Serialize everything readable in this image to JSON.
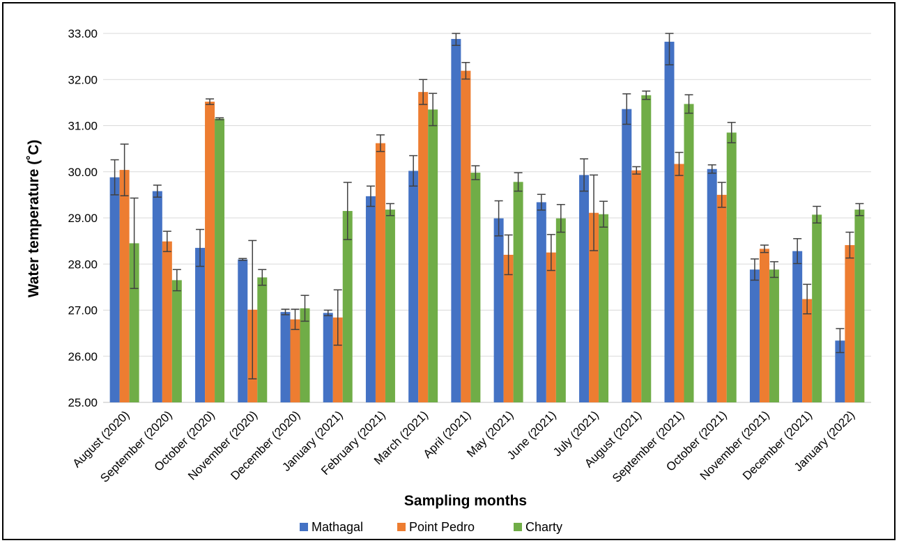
{
  "chart_data": {
    "type": "bar",
    "title": "",
    "xlabel": "Sampling months",
    "ylabel": "Water temperature (˚C)",
    "ylim": [
      25,
      33
    ],
    "y_ticks": [
      "25.00",
      "26.00",
      "27.00",
      "28.00",
      "29.00",
      "30.00",
      "31.00",
      "32.00",
      "33.00"
    ],
    "grid": true,
    "legend_position": "bottom",
    "categories": [
      "August (2020)",
      "September (2020)",
      "October (2020)",
      "November (2020)",
      "December (2020)",
      "January (2021)",
      "February (2021)",
      "March (2021)",
      "April (2021)",
      "May (2021)",
      "June (2021)",
      "July (2021)",
      "August (2021)",
      "September (2021)",
      "October (2021)",
      "November (2021)",
      "December (2021)",
      "January (2022)"
    ],
    "series": [
      {
        "name": "Mathagal",
        "color": "#4472C4",
        "values": [
          29.88,
          29.58,
          28.35,
          28.1,
          26.96,
          26.94,
          29.47,
          30.02,
          32.88,
          28.99,
          29.34,
          29.93,
          31.36,
          32.82,
          30.06,
          27.88,
          28.28,
          26.34
        ],
        "errors": [
          0.38,
          0.13,
          0.4,
          0.02,
          0.06,
          0.06,
          0.22,
          0.33,
          0.14,
          0.38,
          0.17,
          0.35,
          0.33,
          0.5,
          0.09,
          0.23,
          0.27,
          0.26
        ]
      },
      {
        "name": "Point Pedro",
        "color": "#ED7D31",
        "values": [
          30.04,
          28.49,
          31.52,
          27.01,
          26.8,
          26.84,
          30.62,
          31.73,
          32.19,
          28.2,
          28.25,
          29.11,
          30.03,
          30.17,
          29.5,
          28.33,
          27.24,
          28.41
        ],
        "errors": [
          0.56,
          0.22,
          0.06,
          1.5,
          0.22,
          0.6,
          0.18,
          0.27,
          0.18,
          0.43,
          0.39,
          0.82,
          0.08,
          0.25,
          0.27,
          0.08,
          0.32,
          0.28
        ]
      },
      {
        "name": "Charty",
        "color": "#70AD47",
        "values": [
          28.45,
          27.65,
          31.15,
          27.71,
          27.04,
          29.15,
          29.18,
          31.35,
          29.98,
          29.78,
          28.99,
          29.08,
          31.66,
          31.47,
          30.85,
          27.88,
          29.07,
          29.18
        ],
        "errors": [
          0.98,
          0.23,
          0.02,
          0.17,
          0.28,
          0.62,
          0.13,
          0.35,
          0.15,
          0.2,
          0.3,
          0.28,
          0.09,
          0.2,
          0.22,
          0.17,
          0.18,
          0.13
        ]
      }
    ]
  }
}
